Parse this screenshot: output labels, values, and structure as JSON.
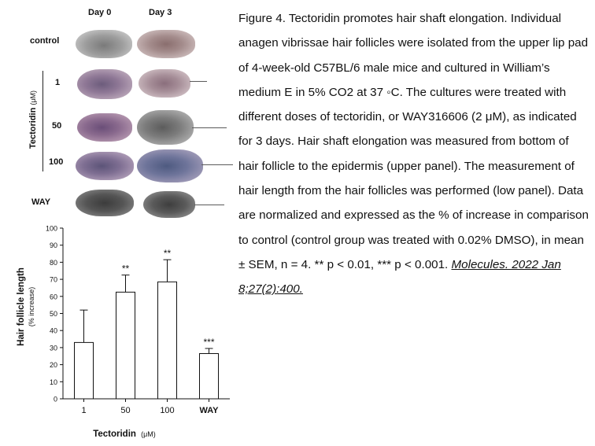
{
  "figure": {
    "columns": [
      "Day 0",
      "Day 3"
    ],
    "row_labels": [
      "control",
      "1",
      "50",
      "100",
      "WAY"
    ],
    "group_label": "Tectoridin",
    "group_unit": "(μM)"
  },
  "caption": {
    "text": "Figure 4. Tectoridin promotes hair shaft elongation. Individual anagen vibrissae hair follicles were isolated from the upper lip pad of 4-week-old C57BL/6 male mice and cultured in William’s medium E in 5% CO2 at 37 ◦C. The cultures were treated with different doses of tectoridin, or WAY316606 (2 μM), as indicated for 3 days. Hair shaft elongation was measured from bottom of hair follicle to the epidermis (upper panel). The measurement of hair length from the hair follicles was performed (low panel). Data are normalized and expressed as the % of increase in comparison to control (control group was treated with 0.02% DMSO), in mean ± SEM, n = 4. ** p < 0.01, *** p < 0.001.",
    "citation": "Molecules. 2022 Jan 8;27(2):400."
  },
  "chart_data": {
    "type": "bar",
    "categories": [
      "1",
      "50",
      "100",
      "WAY"
    ],
    "values": [
      33,
      62.5,
      68.5,
      26.5
    ],
    "errors": [
      19,
      10,
      13,
      3
    ],
    "significance": [
      "",
      "**",
      "**",
      "***"
    ],
    "ylabel": "Hair follicle length",
    "ylabel_sub": "(% increase)",
    "xlabel": "Tectoridin",
    "xlabel_unit": "(μM)",
    "ylim": [
      0,
      100
    ],
    "yticks": [
      0,
      10,
      20,
      30,
      40,
      50,
      60,
      70,
      80,
      90,
      100
    ],
    "bar_color": "#ffffff",
    "grid": false
  }
}
